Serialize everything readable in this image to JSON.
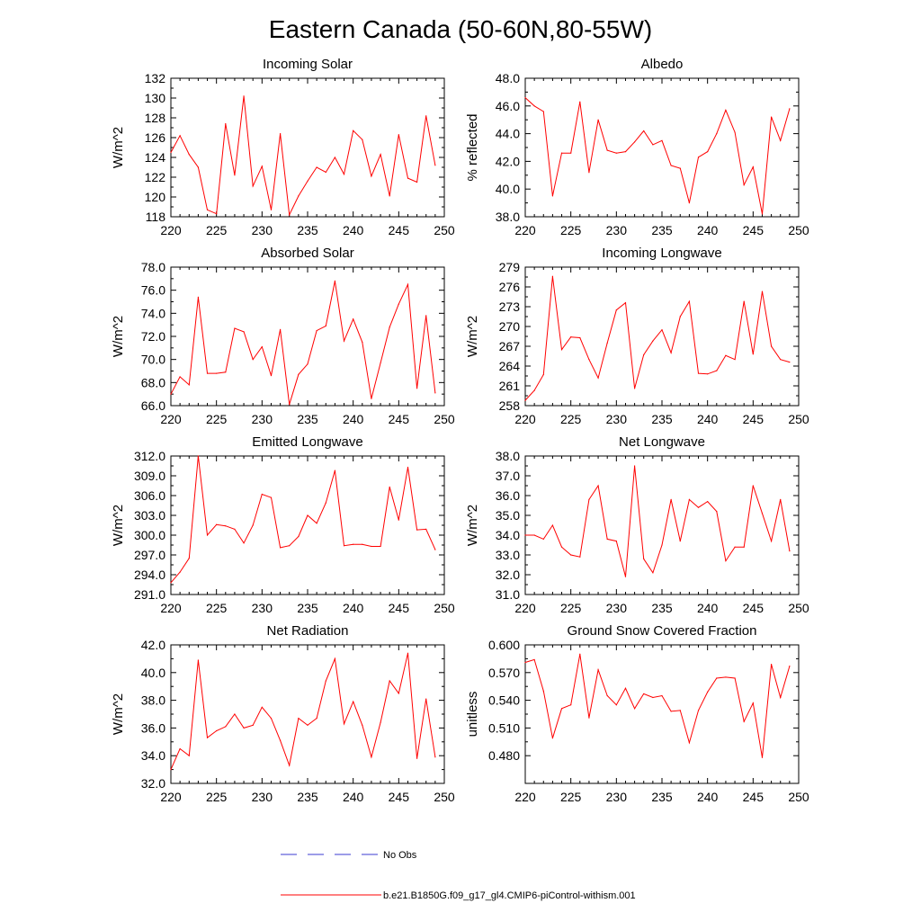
{
  "figure": {
    "title": "Eastern Canada (50-60N,80-55W)"
  },
  "legend": {
    "entries": [
      {
        "label": "No Obs",
        "color": "#3b3bd0",
        "dash": "dashed"
      },
      {
        "label": "b.e21.B1850G.f09_g17_gl4.CMIP6-piControl-withism.001",
        "color": "#ff0000",
        "dash": "solid"
      }
    ]
  },
  "chart_data": [
    {
      "type": "line",
      "title": "Incoming Solar",
      "xlabel": "",
      "ylabel": "W/m^2",
      "xlim": [
        220,
        250
      ],
      "ylim": [
        118,
        132
      ],
      "xticks": [
        220,
        225,
        230,
        235,
        240,
        245,
        250
      ],
      "xtick_labels": [
        "220",
        "225",
        "230",
        "235",
        "240",
        "245",
        "250"
      ],
      "yticks": [
        118,
        120,
        122,
        124,
        126,
        128,
        130,
        132
      ],
      "ytick_labels": [
        "118",
        "120",
        "122",
        "124",
        "126",
        "128",
        "130",
        "132"
      ],
      "series": [
        {
          "color": "#ff0000",
          "x": [
            220,
            221,
            222,
            223,
            224,
            225,
            226,
            227,
            228,
            229,
            230,
            231,
            232,
            233,
            234,
            235,
            236,
            237,
            238,
            239,
            240,
            241,
            242,
            243,
            244,
            245,
            246,
            247,
            248,
            249
          ],
          "values": [
            124.5,
            126.2,
            124.3,
            123.0,
            118.7,
            118.3,
            127.4,
            122.2,
            130.2,
            121.1,
            123.1,
            118.7,
            126.4,
            118.2,
            120.1,
            121.6,
            123.0,
            122.5,
            124.0,
            122.3,
            126.7,
            125.8,
            122.1,
            124.3,
            120.1,
            126.3,
            121.9,
            121.5,
            128.2,
            123.2
          ]
        }
      ]
    },
    {
      "type": "line",
      "title": "Albedo",
      "xlabel": "",
      "ylabel": "% reflected",
      "xlim": [
        220,
        250
      ],
      "ylim": [
        38,
        48
      ],
      "xticks": [
        220,
        225,
        230,
        235,
        240,
        245,
        250
      ],
      "xtick_labels": [
        "220",
        "225",
        "230",
        "235",
        "240",
        "245",
        "250"
      ],
      "yticks": [
        38,
        40,
        42,
        44,
        46,
        48
      ],
      "ytick_labels": [
        "38.0",
        "40.0",
        "42.0",
        "44.0",
        "46.0",
        "48.0"
      ],
      "series": [
        {
          "color": "#ff0000",
          "x": [
            220,
            221,
            222,
            223,
            224,
            225,
            226,
            227,
            228,
            229,
            230,
            231,
            232,
            233,
            234,
            235,
            236,
            237,
            238,
            239,
            240,
            241,
            242,
            243,
            244,
            245,
            246,
            247,
            248,
            249
          ],
          "values": [
            46.6,
            46.0,
            45.6,
            39.5,
            42.6,
            42.6,
            46.3,
            41.2,
            45.0,
            42.8,
            42.6,
            42.7,
            43.4,
            44.2,
            43.2,
            43.5,
            41.7,
            41.5,
            39.0,
            42.3,
            42.7,
            44.0,
            45.7,
            44.1,
            40.3,
            41.6,
            38.2,
            45.2,
            43.5,
            45.8
          ]
        }
      ]
    },
    {
      "type": "line",
      "title": "Absorbed Solar",
      "xlabel": "",
      "ylabel": "W/m^2",
      "xlim": [
        220,
        250
      ],
      "ylim": [
        66,
        78
      ],
      "xticks": [
        220,
        225,
        230,
        235,
        240,
        245,
        250
      ],
      "xtick_labels": [
        "220",
        "225",
        "230",
        "235",
        "240",
        "245",
        "250"
      ],
      "yticks": [
        66,
        68,
        70,
        72,
        74,
        76,
        78
      ],
      "ytick_labels": [
        "66.0",
        "68.0",
        "70.0",
        "72.0",
        "74.0",
        "76.0",
        "78.0"
      ],
      "series": [
        {
          "color": "#ff0000",
          "x": [
            220,
            221,
            222,
            223,
            224,
            225,
            226,
            227,
            228,
            229,
            230,
            231,
            232,
            233,
            234,
            235,
            236,
            237,
            238,
            239,
            240,
            241,
            242,
            243,
            244,
            245,
            246,
            247,
            248,
            249
          ],
          "values": [
            67.0,
            68.5,
            67.8,
            75.4,
            68.8,
            68.8,
            68.9,
            72.7,
            72.4,
            70.0,
            71.1,
            68.6,
            72.6,
            66.1,
            68.7,
            69.6,
            72.5,
            72.9,
            76.8,
            71.6,
            73.5,
            71.5,
            66.6,
            69.7,
            72.8,
            74.8,
            76.5,
            67.5,
            73.8,
            67.1
          ]
        }
      ]
    },
    {
      "type": "line",
      "title": "Incoming Longwave",
      "xlabel": "",
      "ylabel": "W/m^2",
      "xlim": [
        220,
        250
      ],
      "ylim": [
        258,
        279
      ],
      "xticks": [
        220,
        225,
        230,
        235,
        240,
        245,
        250
      ],
      "xtick_labels": [
        "220",
        "225",
        "230",
        "235",
        "240",
        "245",
        "250"
      ],
      "yticks": [
        258,
        261,
        264,
        267,
        270,
        273,
        276,
        279
      ],
      "ytick_labels": [
        "258",
        "261",
        "264",
        "267",
        "270",
        "273",
        "276",
        "279"
      ],
      "series": [
        {
          "color": "#ff0000",
          "x": [
            220,
            221,
            222,
            223,
            224,
            225,
            226,
            227,
            228,
            229,
            230,
            231,
            232,
            233,
            234,
            235,
            236,
            237,
            238,
            239,
            240,
            241,
            242,
            243,
            244,
            245,
            246,
            247,
            248,
            249
          ],
          "values": [
            258.8,
            260.3,
            262.7,
            277.6,
            266.5,
            268.4,
            268.3,
            265.0,
            262.2,
            267.5,
            272.5,
            273.6,
            260.6,
            265.7,
            267.8,
            269.5,
            266.0,
            271.5,
            273.8,
            262.9,
            262.8,
            263.3,
            265.6,
            265.0,
            273.8,
            265.8,
            275.3,
            267.0,
            265.0,
            264.6
          ]
        }
      ]
    },
    {
      "type": "line",
      "title": "Emitted Longwave",
      "xlabel": "",
      "ylabel": "W/m^2",
      "xlim": [
        220,
        250
      ],
      "ylim": [
        291,
        312
      ],
      "xticks": [
        220,
        225,
        230,
        235,
        240,
        245,
        250
      ],
      "xtick_labels": [
        "220",
        "225",
        "230",
        "235",
        "240",
        "245",
        "250"
      ],
      "yticks": [
        291,
        294,
        297,
        300,
        303,
        306,
        309,
        312
      ],
      "ytick_labels": [
        "291.0",
        "294.0",
        "297.0",
        "300.0",
        "303.0",
        "306.0",
        "309.0",
        "312.0"
      ],
      "series": [
        {
          "color": "#ff0000",
          "x": [
            220,
            221,
            222,
            223,
            224,
            225,
            226,
            227,
            228,
            229,
            230,
            231,
            232,
            233,
            234,
            235,
            236,
            237,
            238,
            239,
            240,
            241,
            242,
            243,
            244,
            245,
            246,
            247,
            248,
            249
          ],
          "values": [
            292.8,
            294.4,
            296.5,
            312.0,
            300.0,
            301.6,
            301.4,
            300.9,
            298.8,
            301.5,
            306.2,
            305.7,
            298.1,
            298.4,
            299.8,
            303.0,
            301.8,
            304.9,
            309.8,
            298.4,
            298.6,
            298.6,
            298.3,
            298.3,
            307.3,
            302.3,
            310.3,
            300.8,
            300.9,
            297.8
          ]
        }
      ]
    },
    {
      "type": "line",
      "title": "Net Longwave",
      "xlabel": "",
      "ylabel": "W/m^2",
      "xlim": [
        220,
        250
      ],
      "ylim": [
        31,
        38
      ],
      "xticks": [
        220,
        225,
        230,
        235,
        240,
        245,
        250
      ],
      "xtick_labels": [
        "220",
        "225",
        "230",
        "235",
        "240",
        "245",
        "250"
      ],
      "yticks": [
        31,
        32,
        33,
        34,
        35,
        36,
        37,
        38
      ],
      "ytick_labels": [
        "31.0",
        "32.0",
        "33.0",
        "34.0",
        "35.0",
        "36.0",
        "37.0",
        "38.0"
      ],
      "series": [
        {
          "color": "#ff0000",
          "x": [
            220,
            221,
            222,
            223,
            224,
            225,
            226,
            227,
            228,
            229,
            230,
            231,
            232,
            233,
            234,
            235,
            236,
            237,
            238,
            239,
            240,
            241,
            242,
            243,
            244,
            245,
            246,
            247,
            248,
            249
          ],
          "values": [
            34.0,
            34.0,
            33.8,
            34.5,
            33.4,
            33.0,
            32.9,
            35.8,
            36.5,
            33.8,
            33.7,
            31.9,
            37.5,
            32.8,
            32.1,
            33.5,
            35.8,
            33.7,
            35.8,
            35.4,
            35.7,
            35.2,
            32.7,
            33.4,
            33.4,
            36.5,
            35.1,
            33.7,
            35.8,
            33.2
          ]
        }
      ]
    },
    {
      "type": "line",
      "title": "Net Radiation",
      "xlabel": "",
      "ylabel": "W/m^2",
      "xlim": [
        220,
        250
      ],
      "ylim": [
        32,
        42
      ],
      "xticks": [
        220,
        225,
        230,
        235,
        240,
        245,
        250
      ],
      "xtick_labels": [
        "220",
        "225",
        "230",
        "235",
        "240",
        "245",
        "250"
      ],
      "yticks": [
        32,
        34,
        36,
        38,
        40,
        42
      ],
      "ytick_labels": [
        "32.0",
        "34.0",
        "36.0",
        "38.0",
        "40.0",
        "42.0"
      ],
      "series": [
        {
          "color": "#ff0000",
          "x": [
            220,
            221,
            222,
            223,
            224,
            225,
            226,
            227,
            228,
            229,
            230,
            231,
            232,
            233,
            234,
            235,
            236,
            237,
            238,
            239,
            240,
            241,
            242,
            243,
            244,
            245,
            246,
            247,
            248,
            249
          ],
          "values": [
            33.0,
            34.5,
            34.0,
            40.9,
            35.3,
            35.8,
            36.1,
            37.0,
            36.0,
            36.2,
            37.5,
            36.7,
            35.1,
            33.3,
            36.7,
            36.2,
            36.7,
            39.4,
            41.0,
            36.3,
            37.9,
            36.2,
            33.9,
            36.4,
            39.4,
            38.5,
            41.4,
            33.8,
            38.1,
            33.9
          ]
        }
      ]
    },
    {
      "type": "line",
      "title": "Ground Snow Covered Fraction",
      "xlabel": "",
      "ylabel": "unitless",
      "xlim": [
        220,
        250
      ],
      "ylim": [
        0.45,
        0.6
      ],
      "xticks": [
        220,
        225,
        230,
        235,
        240,
        245,
        250
      ],
      "xtick_labels": [
        "220",
        "225",
        "230",
        "235",
        "240",
        "245",
        "250"
      ],
      "yticks": [
        0.48,
        0.51,
        0.54,
        0.57,
        0.6
      ],
      "ytick_labels": [
        "0.480",
        "0.510",
        "0.540",
        "0.570",
        "0.600"
      ],
      "series": [
        {
          "color": "#ff0000",
          "x": [
            220,
            221,
            222,
            223,
            224,
            225,
            226,
            227,
            228,
            229,
            230,
            231,
            232,
            233,
            234,
            235,
            236,
            237,
            238,
            239,
            240,
            241,
            242,
            243,
            244,
            245,
            246,
            247,
            248,
            249
          ],
          "values": [
            0.581,
            0.584,
            0.55,
            0.499,
            0.531,
            0.535,
            0.59,
            0.521,
            0.573,
            0.545,
            0.535,
            0.553,
            0.531,
            0.547,
            0.543,
            0.545,
            0.528,
            0.529,
            0.494,
            0.529,
            0.549,
            0.564,
            0.565,
            0.564,
            0.517,
            0.537,
            0.478,
            0.579,
            0.543,
            0.577
          ]
        }
      ]
    }
  ]
}
